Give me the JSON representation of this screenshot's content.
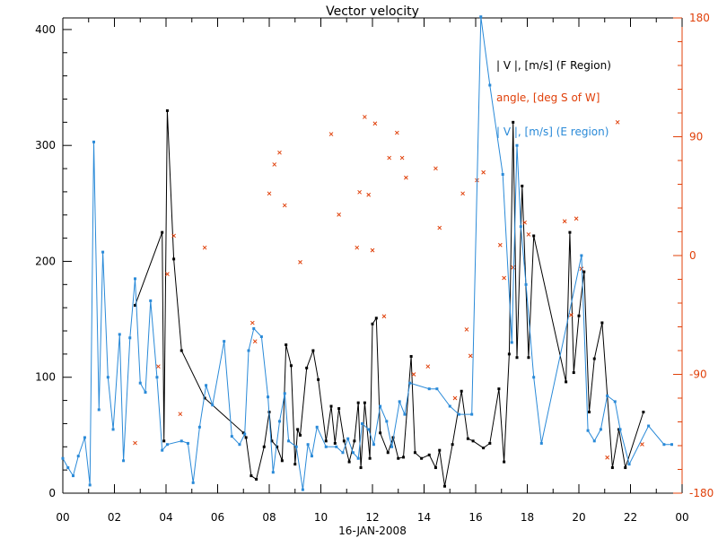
{
  "chart_data": {
    "type": "line",
    "title": "Vector velocity",
    "xlabel": "16-JAN-2008",
    "x_tick_labels": [
      "00",
      "02",
      "04",
      "06",
      "08",
      "10",
      "12",
      "14",
      "16",
      "18",
      "20",
      "22",
      "00"
    ],
    "xlim": [
      0,
      24
    ],
    "ylim": [
      0,
      410
    ],
    "y_ticks": [
      0,
      100,
      200,
      300,
      400
    ],
    "y2lim": [
      -180,
      180
    ],
    "y2_ticks": [
      -180,
      -90,
      0,
      90,
      180
    ],
    "grid": false,
    "legend_position": "top-right",
    "colors": {
      "black": "#000000",
      "orange": "#e0400a",
      "blue": "#2a8ad8"
    },
    "series": [
      {
        "name": "| V |, [m/s] (F Region)",
        "axis": "left",
        "style": "line-points",
        "color": "#000000",
        "x": [
          2.8,
          3.85,
          3.92,
          4.05,
          4.3,
          4.6,
          5.5,
          7.0,
          7.1,
          7.3,
          7.5,
          7.8,
          8.0,
          8.1,
          8.3,
          8.5,
          8.65,
          8.85,
          9.0,
          9.1,
          9.2,
          9.45,
          9.7,
          9.9,
          10.2,
          10.4,
          10.55,
          10.7,
          10.9,
          11.1,
          11.3,
          11.45,
          11.55,
          11.7,
          11.9,
          12.0,
          12.15,
          12.3,
          12.6,
          12.8,
          13.0,
          13.2,
          13.5,
          13.65,
          13.9,
          14.2,
          14.45,
          14.6,
          14.8,
          15.1,
          15.45,
          15.7,
          15.9,
          16.3,
          16.55,
          16.9,
          17.1,
          17.3,
          17.45,
          17.6,
          17.8,
          18.05,
          18.25,
          19.5,
          19.65,
          19.8,
          20.0,
          20.2,
          20.4,
          20.6,
          20.9,
          21.3,
          21.55,
          21.8,
          22.5
        ],
        "y": [
          162,
          225,
          45,
          330,
          202,
          123,
          82,
          52,
          48,
          15,
          12,
          40,
          70,
          45,
          40,
          28,
          128,
          110,
          25,
          55,
          50,
          108,
          123,
          98,
          45,
          75,
          43,
          73,
          45,
          27,
          45,
          78,
          22,
          78,
          30,
          146,
          151,
          52,
          35,
          48,
          30,
          31,
          118,
          35,
          30,
          33,
          22,
          37,
          6,
          42,
          88,
          47,
          45,
          39,
          43,
          90,
          27,
          120,
          320,
          117,
          265,
          117,
          222,
          96,
          225,
          104,
          153,
          191,
          70,
          116,
          147,
          22,
          55,
          22,
          70
        ]
      },
      {
        "name": "angle, [deg S of W]",
        "axis": "right",
        "style": "markers",
        "color": "#e0400a",
        "x": [
          2.8,
          3.7,
          4.05,
          4.3,
          4.55,
          5.5,
          7.35,
          7.45,
          8.0,
          8.2,
          8.4,
          8.6,
          9.2,
          10.4,
          10.7,
          11.4,
          11.5,
          11.7,
          11.85,
          12.0,
          12.1,
          12.45,
          12.65,
          12.95,
          13.15,
          13.3,
          13.6,
          14.15,
          14.45,
          14.6,
          15.2,
          15.5,
          15.65,
          15.8,
          16.05,
          16.3,
          16.95,
          17.1,
          17.45,
          17.9,
          18.05,
          19.45,
          19.7,
          19.9,
          20.1,
          21.1,
          21.5,
          22.45
        ],
        "y": [
          -142,
          -84,
          -14,
          15,
          -120,
          6,
          -51,
          -65,
          47,
          69,
          78,
          38,
          -5,
          92,
          31,
          6,
          48,
          105,
          46,
          4,
          100,
          -46,
          74,
          93,
          74,
          59,
          -90,
          -84,
          66,
          21,
          -108,
          47,
          -56,
          -76,
          57,
          63,
          8,
          -17,
          -9,
          25,
          16,
          26,
          -45,
          28,
          -10,
          -153,
          101,
          -143
        ]
      },
      {
        "name": "| V |, [m/s] (E region)",
        "axis": "left",
        "style": "line-points",
        "color": "#2a8ad8",
        "x": [
          0.0,
          0.2,
          0.4,
          0.6,
          0.85,
          1.05,
          1.2,
          1.4,
          1.55,
          1.75,
          1.95,
          2.2,
          2.35,
          2.6,
          2.8,
          3.0,
          3.2,
          3.4,
          3.65,
          3.85,
          4.05,
          4.6,
          4.85,
          5.05,
          5.3,
          5.55,
          5.8,
          6.25,
          6.55,
          6.85,
          7.05,
          7.2,
          7.4,
          7.7,
          7.95,
          8.15,
          8.4,
          8.6,
          8.75,
          9.05,
          9.3,
          9.5,
          9.65,
          9.85,
          10.2,
          10.6,
          10.85,
          11.05,
          11.25,
          11.45,
          11.6,
          11.85,
          12.05,
          12.3,
          12.55,
          12.75,
          13.05,
          13.25,
          13.45,
          14.2,
          14.5,
          15.0,
          15.35,
          15.85,
          16.2,
          16.55,
          17.05,
          17.4,
          17.6,
          17.75,
          17.95,
          18.25,
          18.55,
          20.1,
          20.35,
          20.6,
          20.85,
          21.1,
          21.4,
          21.6,
          21.95,
          22.7,
          23.3,
          23.6
        ],
        "y": [
          30,
          22,
          15,
          32,
          48,
          7,
          303,
          72,
          208,
          100,
          55,
          137,
          28,
          134,
          185,
          95,
          87,
          166,
          100,
          37,
          42,
          45,
          43,
          9,
          57,
          93,
          76,
          131,
          49,
          42,
          51,
          123,
          142,
          135,
          83,
          18,
          62,
          86,
          45,
          40,
          3,
          42,
          32,
          57,
          40,
          40,
          35,
          47,
          35,
          30,
          60,
          55,
          42,
          75,
          62,
          40,
          79,
          68,
          95,
          90,
          90,
          75,
          68,
          68,
          411,
          352,
          275,
          130,
          300,
          230,
          180,
          100,
          43,
          205,
          54,
          45,
          55,
          84,
          79,
          55,
          25,
          58,
          42,
          42
        ]
      }
    ]
  }
}
